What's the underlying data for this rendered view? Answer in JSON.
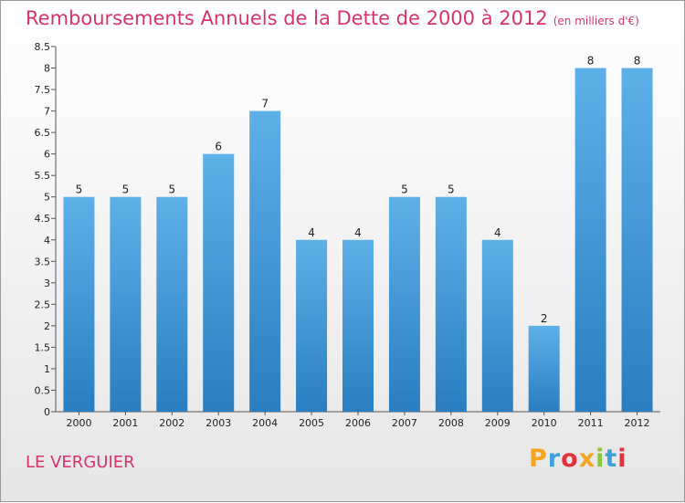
{
  "header": {
    "title": "Remboursements Annuels de la Dette de 2000 à 2012",
    "unit": "(en milliers d'€)"
  },
  "footer": {
    "commune": "LE VERGUIER",
    "logo_letters": [
      "P",
      "r",
      "o",
      "x",
      "i",
      "t",
      "i"
    ],
    "logo_colors": [
      "#f5a51f",
      "#3fa1db",
      "#e2313c",
      "#f5a51f",
      "#8cc63e",
      "#3fa1db",
      "#e2313c"
    ]
  },
  "chart_data": {
    "type": "bar",
    "title": "Remboursements Annuels de la Dette de 2000 à 2012",
    "categories": [
      "2000",
      "2001",
      "2002",
      "2003",
      "2004",
      "2005",
      "2006",
      "2007",
      "2008",
      "2009",
      "2010",
      "2011",
      "2012"
    ],
    "values": [
      5,
      5,
      5,
      6,
      7,
      4,
      4,
      5,
      5,
      4,
      2,
      8,
      8
    ],
    "data_labels": [
      "5",
      "5",
      "5",
      "6",
      "7",
      "4",
      "4",
      "5",
      "5",
      "4",
      "2",
      "8",
      "8"
    ],
    "ylim": [
      0,
      8.5
    ],
    "yticks": [
      0,
      0.5,
      1,
      1.5,
      2,
      2.5,
      3,
      3.5,
      4,
      4.5,
      5,
      5.5,
      6,
      6.5,
      7,
      7.5,
      8,
      8.5
    ],
    "ytick_labels": [
      "0",
      "0.5",
      "1",
      "1.5",
      "2",
      "2.5",
      "3",
      "3.5",
      "4",
      "4.5",
      "5",
      "5.5",
      "6",
      "6.5",
      "7",
      "7.5",
      "8",
      "8.5"
    ],
    "grid": false,
    "colors": {
      "bar_top": "#5eb0e8",
      "bar_bottom": "#2a7ec0",
      "axis": "#555555"
    }
  }
}
